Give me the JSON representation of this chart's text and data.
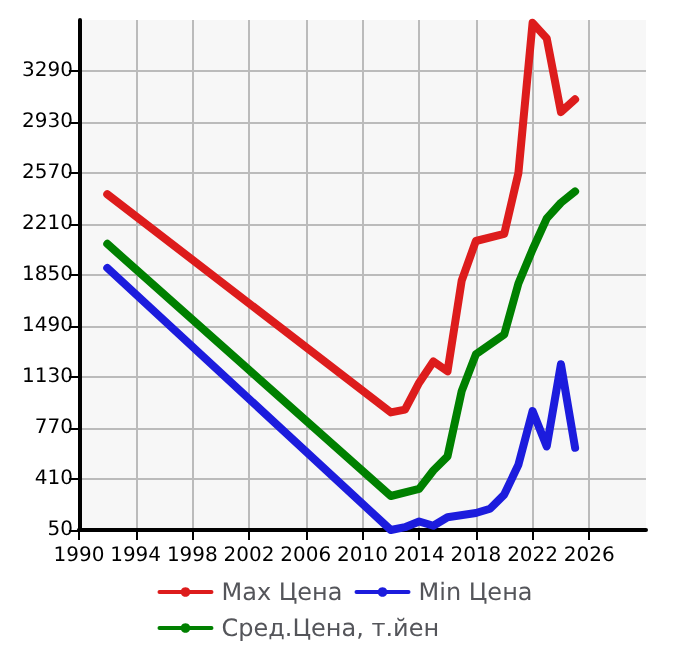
{
  "chart_data": {
    "type": "line",
    "xlim": [
      1990,
      2030
    ],
    "xticks": [
      1990,
      1994,
      1998,
      2002,
      2006,
      2010,
      2014,
      2018,
      2022,
      2026
    ],
    "ylim": [
      50,
      3650
    ],
    "yticks": [
      50,
      410,
      770,
      1130,
      1490,
      1850,
      2210,
      2570,
      2930,
      3290
    ],
    "grid": true,
    "legend": "bottom",
    "marker": "none",
    "line_style": "solid",
    "series": [
      {
        "name": "Max Цена",
        "color": "#dd1c1c",
        "x": [
          1992,
          2012,
          2013,
          2014,
          2015,
          2016,
          2017,
          2018,
          2020,
          2021,
          2022,
          2023,
          2024,
          2025
        ],
        "values": [
          2420,
          880,
          900,
          1090,
          1240,
          1170,
          1810,
          2090,
          2140,
          2570,
          3630,
          3520,
          3000,
          3090
        ]
      },
      {
        "name": "Min Цена",
        "color": "#1c1cdd",
        "x": [
          1992,
          2012,
          2013,
          2014,
          2015,
          2016,
          2018,
          2019,
          2020,
          2021,
          2022,
          2023,
          2024,
          2025
        ],
        "values": [
          1900,
          50,
          70,
          110,
          80,
          140,
          170,
          200,
          300,
          510,
          890,
          640,
          1220,
          630
        ]
      },
      {
        "name": "Сред.Цена, т.йен",
        "color": "#008000",
        "x": [
          1992,
          2012,
          2014,
          2015,
          2016,
          2017,
          2018,
          2020,
          2021,
          2022,
          2023,
          2024,
          2025
        ],
        "values": [
          2070,
          290,
          340,
          470,
          570,
          1030,
          1290,
          1430,
          1790,
          2030,
          2250,
          2360,
          2440
        ]
      }
    ]
  }
}
